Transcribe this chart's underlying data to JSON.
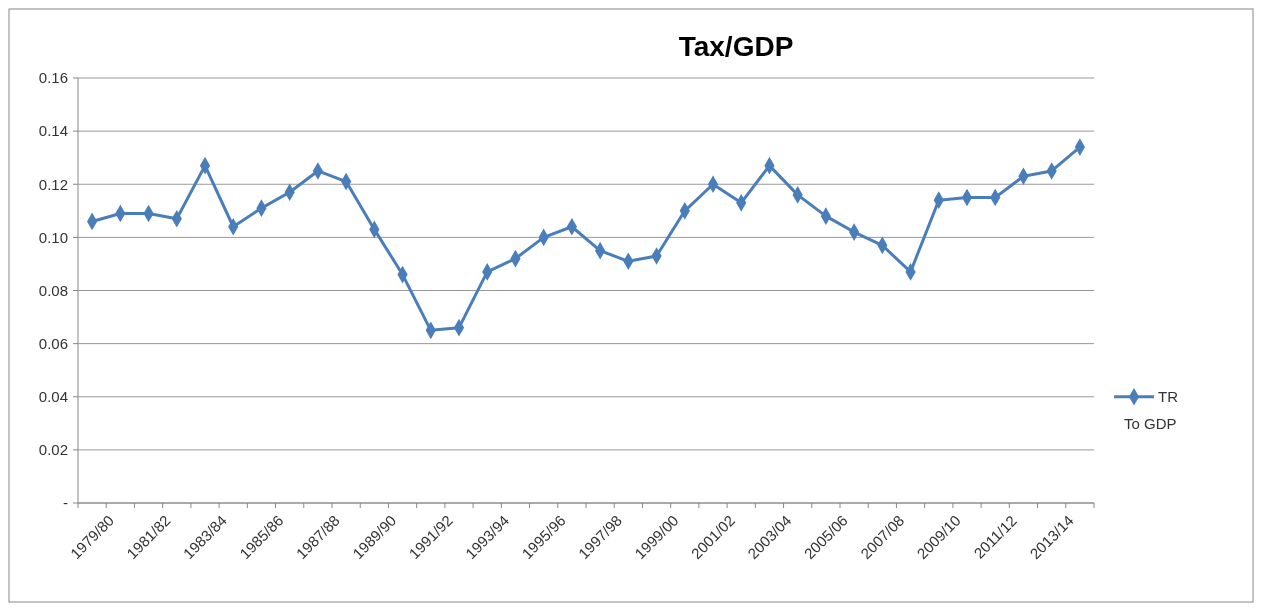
{
  "chart_data": {
    "type": "line",
    "title": "Tax/GDP",
    "categories": [
      "1979/80",
      null,
      "1981/82",
      null,
      "1983/84",
      null,
      "1985/86",
      null,
      "1987/88",
      null,
      "1989/90",
      null,
      "1991/92",
      null,
      "1993/94",
      null,
      "1995/96",
      null,
      "1997/98",
      null,
      "1999/00",
      null,
      "2001/02",
      null,
      "2003/04",
      null,
      "2005/06",
      null,
      "2007/08",
      null,
      "2009/10",
      null,
      "2011/12",
      null,
      "2013/14",
      null
    ],
    "series": [
      {
        "name": "TR To GDP",
        "color": "#4a7ebb",
        "values": [
          0.106,
          0.109,
          0.109,
          0.107,
          0.127,
          0.104,
          0.111,
          0.117,
          0.125,
          0.121,
          0.103,
          0.086,
          0.065,
          0.066,
          0.087,
          0.092,
          0.1,
          0.104,
          0.095,
          0.091,
          0.093,
          0.11,
          0.12,
          0.113,
          0.127,
          0.116,
          0.108,
          0.102,
          0.097,
          0.087,
          0.114,
          0.115,
          0.115,
          0.123,
          0.125,
          0.134
        ]
      }
    ],
    "ylim": [
      0,
      0.16
    ],
    "yticks": [
      {
        "value": 0,
        "label": "-"
      },
      {
        "value": 0.02,
        "label": "0.02"
      },
      {
        "value": 0.04,
        "label": "0.04"
      },
      {
        "value": 0.06,
        "label": "0.06"
      },
      {
        "value": 0.08,
        "label": "0.08"
      },
      {
        "value": 0.1,
        "label": "0.10"
      },
      {
        "value": 0.12,
        "label": "0.12"
      },
      {
        "value": 0.14,
        "label": "0.14"
      },
      {
        "value": 0.16,
        "label": "0.16"
      }
    ],
    "grid": "y",
    "legend": "right",
    "marker": "diamond",
    "line_style": "solid"
  }
}
